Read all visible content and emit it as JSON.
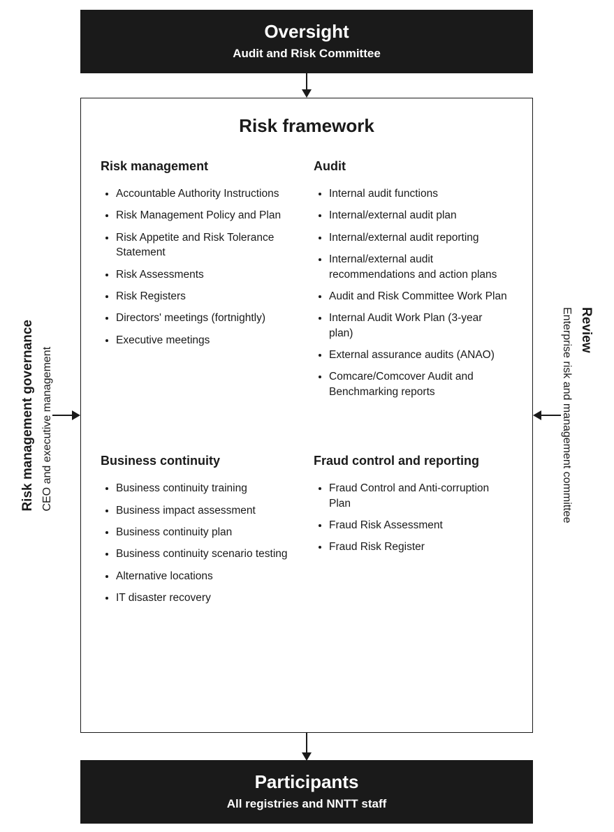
{
  "colors": {
    "dark": "#1a1a1a",
    "bg": "#ffffff",
    "text": "#1a1a1a"
  },
  "header": {
    "title": "Oversight",
    "subtitle": "Audit and Risk Committee"
  },
  "footer": {
    "title": "Participants",
    "subtitle": "All registries and NNTT staff"
  },
  "main": {
    "title": "Risk framework",
    "sections": {
      "risk_management": {
        "title": "Risk management",
        "items": [
          "Accountable Authority Instructions",
          "Risk Management Policy and Plan",
          "Risk Appetite and Risk Tolerance Statement",
          "Risk Assessments",
          "Risk Registers",
          "Directors' meetings (fortnightly)",
          "Executive meetings"
        ]
      },
      "audit": {
        "title": "Audit",
        "items": [
          "Internal audit functions",
          "Internal/external audit plan",
          "Internal/external audit reporting",
          "Internal/external audit recommendations and action plans",
          "Audit and Risk Committee Work Plan",
          "Internal Audit Work Plan (3-year plan)",
          "External assurance audits (ANAO)",
          "Comcare/Comcover Audit and Benchmarking reports"
        ]
      },
      "business_continuity": {
        "title": "Business continuity",
        "items": [
          "Business continuity training",
          "Business impact assessment",
          "Business continuity plan",
          "Business continuity scenario testing",
          "Alternative locations",
          "IT disaster recovery"
        ]
      },
      "fraud": {
        "title": "Fraud control and reporting",
        "items": [
          "Fraud Control and Anti-corruption Plan",
          "Fraud Risk Assessment",
          "Fraud Risk Register"
        ]
      }
    }
  },
  "left": {
    "title": "Risk management governance",
    "subtitle": "CEO and executive management"
  },
  "right": {
    "title": "Review",
    "subtitle": "Enterprise risk and management committee"
  },
  "arrows": {
    "stroke": "#1a1a1a",
    "stroke_width": 2,
    "head_size": 10
  }
}
